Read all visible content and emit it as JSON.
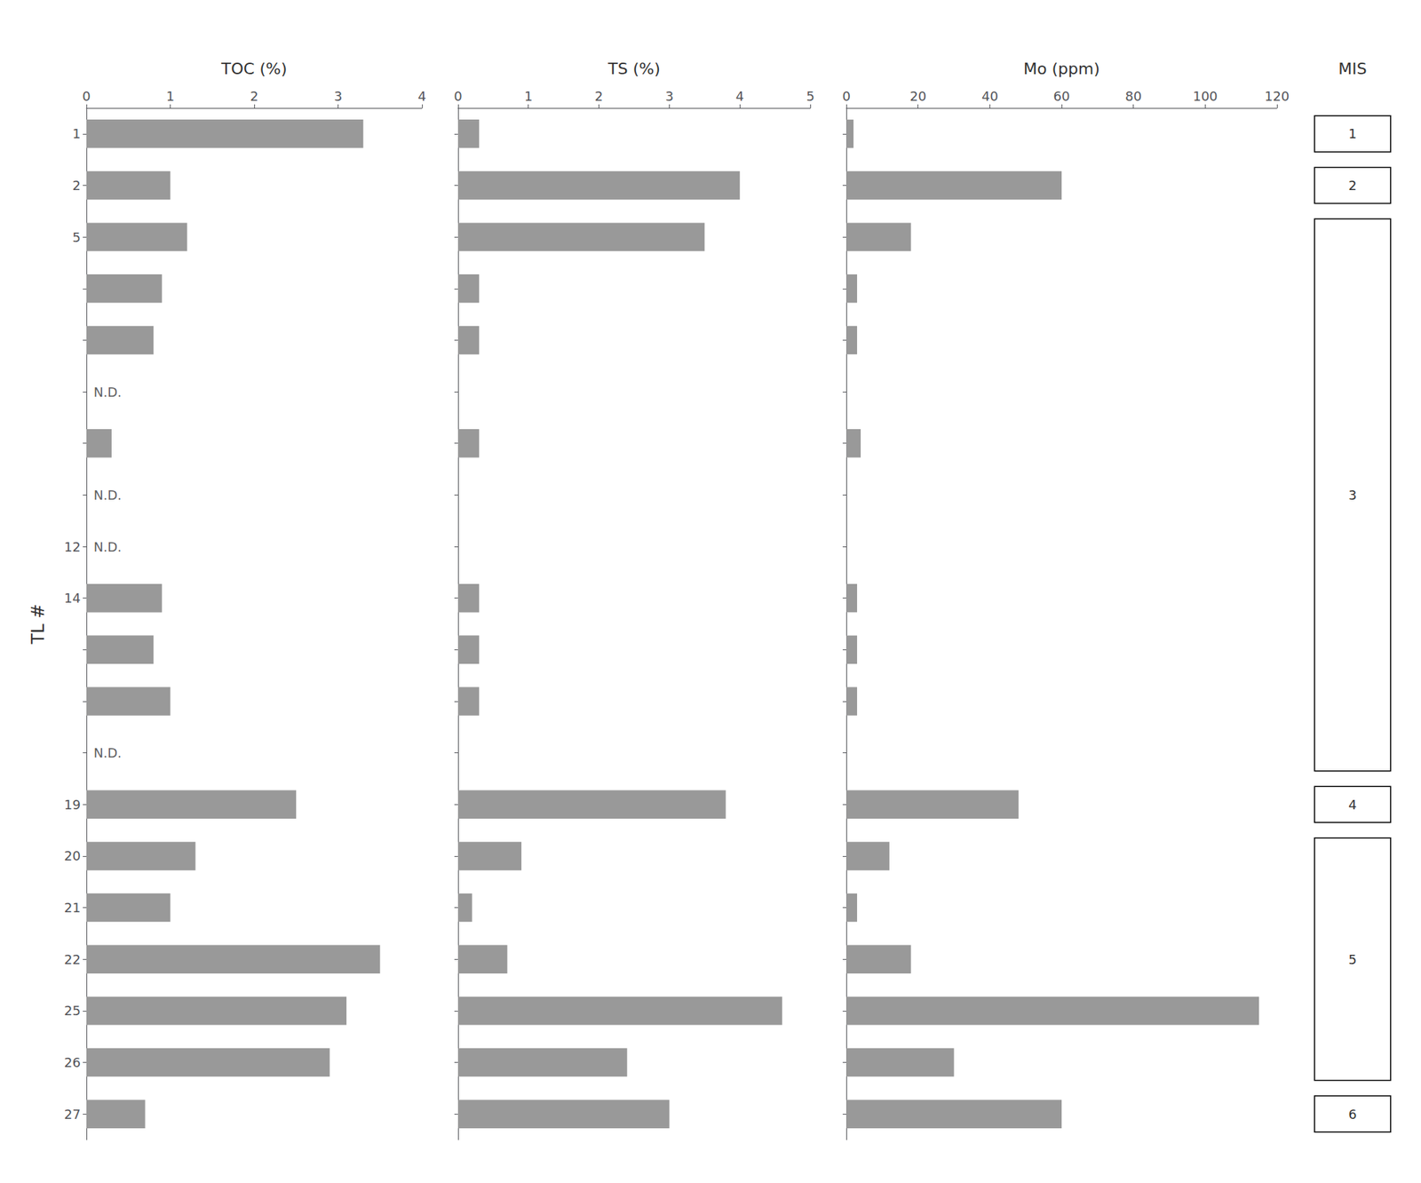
{
  "chart_data": [
    {
      "type": "bar",
      "orientation": "horizontal",
      "xlabel": "TOC (%)",
      "ylabel": "TL #",
      "categories": [
        "1",
        "2",
        "5",
        null,
        null,
        null,
        null,
        null,
        "12",
        "14",
        null,
        null,
        null,
        "19",
        "20",
        "21",
        "22",
        "25",
        "26",
        "27"
      ],
      "values": [
        3.3,
        1.0,
        1.2,
        0.9,
        0.8,
        null,
        0.3,
        null,
        null,
        0.9,
        0.8,
        1.0,
        null,
        2.5,
        1.3,
        1.0,
        3.5,
        3.1,
        2.9,
        0.7
      ],
      "color": "#999999",
      "xlim": [
        0,
        4
      ],
      "xticks": [
        0,
        1,
        2,
        3,
        4
      ],
      "grid": false,
      "annotations": [
        {
          "text": "N.D.",
          "row": 6
        },
        {
          "text": "N.D.",
          "row": 8
        },
        {
          "text": "N.D.",
          "row": 9
        },
        {
          "text": "N.D.",
          "row": 13
        }
      ]
    },
    {
      "type": "bar",
      "orientation": "horizontal",
      "xlabel": "TS (%)",
      "categories": [
        "1",
        "2",
        "5",
        null,
        null,
        null,
        null,
        null,
        "12",
        "14",
        null,
        null,
        null,
        "19",
        "20",
        "21",
        "22",
        "25",
        "26",
        "27"
      ],
      "values": [
        0.3,
        4.0,
        3.5,
        0.3,
        0.3,
        null,
        0.3,
        null,
        null,
        0.3,
        0.3,
        0.3,
        null,
        3.8,
        0.9,
        0.2,
        0.7,
        4.6,
        2.4,
        3.0
      ],
      "color": "#999999",
      "xlim": [
        0,
        5
      ],
      "xticks": [
        0,
        1,
        2,
        3,
        4,
        5
      ],
      "grid": false,
      "tick_labels": "x"
    },
    {
      "type": "bar",
      "orientation": "horizontal",
      "xlabel": "Mo (ppm)",
      "categories": [
        "1",
        "2",
        "5",
        null,
        null,
        null,
        null,
        null,
        "12",
        "14",
        null,
        null,
        null,
        "19",
        "20",
        "21",
        "22",
        "25",
        "26",
        "27"
      ],
      "values": [
        2.0,
        60.0,
        18.0,
        3.0,
        3.0,
        null,
        4.0,
        null,
        null,
        3.0,
        3.0,
        3.0,
        null,
        48.0,
        12.0,
        3.0,
        18.0,
        115.0,
        30.0,
        60.0
      ],
      "color": "#999999",
      "xlim": [
        0,
        120
      ],
      "xticks": [
        0,
        20,
        40,
        60,
        80,
        100,
        120
      ],
      "grid": false,
      "tick_labels": "x"
    },
    {
      "type": "sections",
      "title": "MIS",
      "sections": [
        {
          "label": "1",
          "first_row": 1,
          "last_row": 1
        },
        {
          "label": "2",
          "first_row": 2,
          "last_row": 2
        },
        {
          "label": "3",
          "first_row": 3,
          "last_row": 13
        },
        {
          "label": "4",
          "first_row": 14,
          "last_row": 14
        },
        {
          "label": "5",
          "first_row": 15,
          "last_row": 19
        },
        {
          "label": "6",
          "first_row": 20,
          "last_row": 20
        }
      ]
    }
  ]
}
